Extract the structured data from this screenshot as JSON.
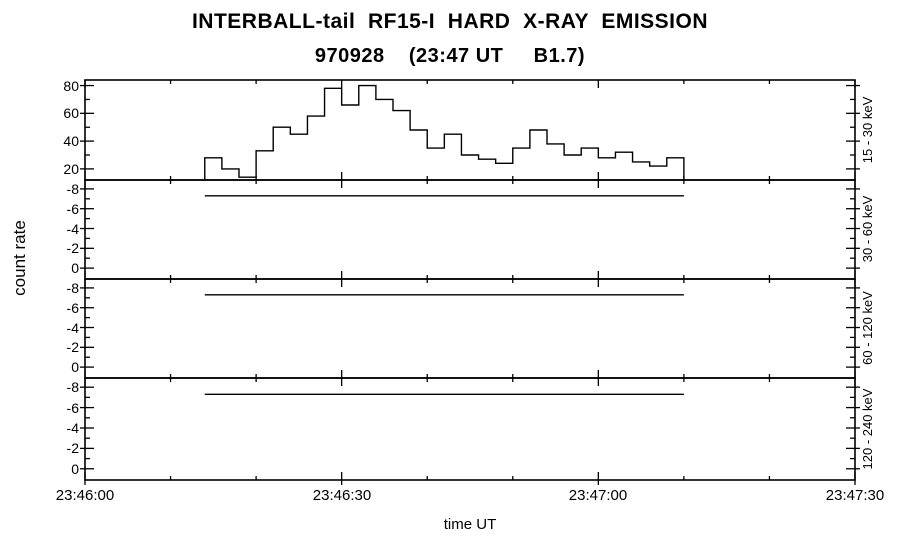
{
  "header": {
    "title": "INTERBALL-tail  RF15-I  HARD  X-RAY  EMISSION",
    "subtitle": "970928    (23:47 UT     B1.7)"
  },
  "chart_data": {
    "type": "line",
    "style": "step-histogram, 4 stacked panels, shared time axis",
    "title": "INTERBALL-tail RF15-I HARD X-RAY EMISSION",
    "date": "970928",
    "time": "23:47 UT",
    "flare_class": "B1.7",
    "xlabel": "time UT",
    "ylabel": "count rate",
    "grid": false,
    "x_axis": {
      "tick_labels": [
        "23:46:00",
        "23:46:30",
        "23:47:00",
        "23:47:30"
      ],
      "major_tick_seconds": [
        0,
        30,
        60,
        90
      ],
      "minor_tick_seconds": [
        10,
        20,
        40,
        50,
        70,
        80
      ],
      "range_seconds": [
        0,
        90
      ]
    },
    "panels": [
      {
        "label": "15 - 30 keV",
        "y_ticks": [
          20,
          40,
          60,
          80
        ],
        "y_minor_ticks": [
          30,
          50,
          70
        ],
        "y_top_value": 84,
        "y_bottom_value": 12,
        "series": {
          "kind": "step",
          "start_second": 14,
          "bin_seconds": 2,
          "baseline": 12,
          "counts": [
            28,
            20,
            14,
            33,
            50,
            45,
            58,
            78,
            66,
            80,
            70,
            62,
            48,
            35,
            45,
            30,
            27,
            24,
            35,
            48,
            38,
            30,
            35,
            28,
            32,
            25,
            22,
            28
          ]
        }
      },
      {
        "label": "30 - 60 keV",
        "y_ticks": [
          -8,
          -6,
          -4,
          -2,
          0
        ],
        "y_minor_ticks": [
          -7,
          -5,
          -3,
          -1
        ],
        "y_top_value": -8.9,
        "y_bottom_value": 1.1,
        "series": {
          "kind": "flat",
          "start_second": 14,
          "end_second": 70,
          "value": -7.3
        }
      },
      {
        "label": "60 - 120 keV",
        "y_ticks": [
          -8,
          -6,
          -4,
          -2,
          0
        ],
        "y_minor_ticks": [
          -7,
          -5,
          -3,
          -1
        ],
        "y_top_value": -8.9,
        "y_bottom_value": 1.1,
        "series": {
          "kind": "flat",
          "start_second": 14,
          "end_second": 70,
          "value": -7.3
        }
      },
      {
        "label": "120 - 240 keV",
        "y_ticks": [
          -8,
          -6,
          -4,
          -2,
          0
        ],
        "y_minor_ticks": [
          -7,
          -5,
          -3,
          -1
        ],
        "y_top_value": -8.9,
        "y_bottom_value": 1.1,
        "series": {
          "kind": "flat",
          "start_second": 14,
          "end_second": 70,
          "value": -7.3
        }
      }
    ]
  }
}
